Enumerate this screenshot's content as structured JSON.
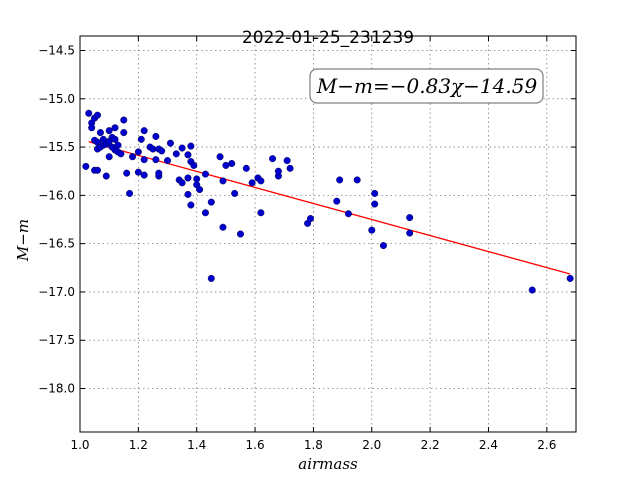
{
  "chart_data": {
    "type": "scatter",
    "title": "2022-01-25_231239",
    "xlabel": "airmass",
    "ylabel": "M−m",
    "xlim": [
      1.0,
      2.7
    ],
    "ylim": [
      -18.45,
      -14.35
    ],
    "y_inverted": true,
    "grid": true,
    "x_ticks": [
      1.0,
      1.2,
      1.4,
      1.6,
      1.8,
      2.0,
      2.2,
      2.4,
      2.6
    ],
    "x_tick_labels": [
      "1.0",
      "1.2",
      "1.4",
      "1.6",
      "1.8",
      "2.0",
      "2.2",
      "2.4",
      "2.6"
    ],
    "y_ticks": [
      -14.5,
      -15.0,
      -15.5,
      -16.0,
      -16.5,
      -17.0,
      -17.5,
      -18.0
    ],
    "y_tick_labels": [
      "−14.5",
      "−15.0",
      "−15.5",
      "−16.0",
      "−16.5",
      "−17.0",
      "−17.5",
      "−18.0"
    ],
    "annotation": "M−m=−0.83χ−14.59",
    "fit": {
      "slope": -0.83,
      "intercept": -14.59,
      "x_range": [
        1.03,
        2.68
      ],
      "color": "#ff0000"
    },
    "point_color": "#0000cc",
    "series": [
      {
        "points": [
          [
            1.02,
            -15.7
          ],
          [
            1.03,
            -15.15
          ],
          [
            1.04,
            -15.25
          ],
          [
            1.04,
            -15.3
          ],
          [
            1.05,
            -15.2
          ],
          [
            1.05,
            -15.74
          ],
          [
            1.05,
            -15.43
          ],
          [
            1.06,
            -15.52
          ],
          [
            1.06,
            -15.74
          ],
          [
            1.06,
            -15.17
          ],
          [
            1.06,
            -15.45
          ],
          [
            1.07,
            -15.35
          ],
          [
            1.07,
            -15.5
          ],
          [
            1.08,
            -15.48
          ],
          [
            1.08,
            -15.42
          ],
          [
            1.09,
            -15.8
          ],
          [
            1.09,
            -15.47
          ],
          [
            1.1,
            -15.6
          ],
          [
            1.1,
            -15.33
          ],
          [
            1.1,
            -15.44
          ],
          [
            1.11,
            -15.4
          ],
          [
            1.11,
            -15.5
          ],
          [
            1.12,
            -15.3
          ],
          [
            1.12,
            -15.42
          ],
          [
            1.12,
            -15.53
          ],
          [
            1.13,
            -15.48
          ],
          [
            1.13,
            -15.55
          ],
          [
            1.14,
            -15.57
          ],
          [
            1.15,
            -15.22
          ],
          [
            1.15,
            -15.35
          ],
          [
            1.16,
            -15.77
          ],
          [
            1.17,
            -15.98
          ],
          [
            1.18,
            -15.6
          ],
          [
            1.2,
            -15.55
          ],
          [
            1.2,
            -15.76
          ],
          [
            1.21,
            -15.42
          ],
          [
            1.22,
            -15.33
          ],
          [
            1.22,
            -15.79
          ],
          [
            1.22,
            -15.63
          ],
          [
            1.24,
            -15.5
          ],
          [
            1.25,
            -15.52
          ],
          [
            1.26,
            -15.63
          ],
          [
            1.26,
            -15.39
          ],
          [
            1.27,
            -15.52
          ],
          [
            1.27,
            -15.8
          ],
          [
            1.27,
            -15.77
          ],
          [
            1.28,
            -15.54
          ],
          [
            1.3,
            -15.64
          ],
          [
            1.31,
            -15.46
          ],
          [
            1.33,
            -15.57
          ],
          [
            1.34,
            -15.84
          ],
          [
            1.35,
            -15.51
          ],
          [
            1.35,
            -15.87
          ],
          [
            1.37,
            -15.58
          ],
          [
            1.37,
            -15.99
          ],
          [
            1.37,
            -15.82
          ],
          [
            1.38,
            -15.49
          ],
          [
            1.38,
            -15.65
          ],
          [
            1.38,
            -16.1
          ],
          [
            1.39,
            -15.69
          ],
          [
            1.4,
            -15.83
          ],
          [
            1.4,
            -15.89
          ],
          [
            1.41,
            -15.94
          ],
          [
            1.43,
            -16.18
          ],
          [
            1.43,
            -15.78
          ],
          [
            1.45,
            -16.86
          ],
          [
            1.45,
            -16.07
          ],
          [
            1.48,
            -15.6
          ],
          [
            1.49,
            -15.85
          ],
          [
            1.49,
            -16.33
          ],
          [
            1.5,
            -15.69
          ],
          [
            1.52,
            -15.67
          ],
          [
            1.53,
            -15.98
          ],
          [
            1.55,
            -16.4
          ],
          [
            1.57,
            -15.72
          ],
          [
            1.59,
            -15.87
          ],
          [
            1.61,
            -15.82
          ],
          [
            1.62,
            -15.85
          ],
          [
            1.62,
            -16.18
          ],
          [
            1.66,
            -15.62
          ],
          [
            1.68,
            -15.8
          ],
          [
            1.68,
            -15.75
          ],
          [
            1.71,
            -15.64
          ],
          [
            1.72,
            -15.72
          ],
          [
            1.78,
            -16.29
          ],
          [
            1.79,
            -16.24
          ],
          [
            1.88,
            -16.06
          ],
          [
            1.89,
            -15.84
          ],
          [
            1.92,
            -16.19
          ],
          [
            1.95,
            -15.84
          ],
          [
            2.0,
            -16.36
          ],
          [
            2.01,
            -16.09
          ],
          [
            2.01,
            -15.98
          ],
          [
            2.04,
            -16.52
          ],
          [
            2.13,
            -16.23
          ],
          [
            2.13,
            -16.39
          ],
          [
            2.55,
            -16.98
          ],
          [
            2.68,
            -16.86
          ]
        ]
      }
    ]
  }
}
